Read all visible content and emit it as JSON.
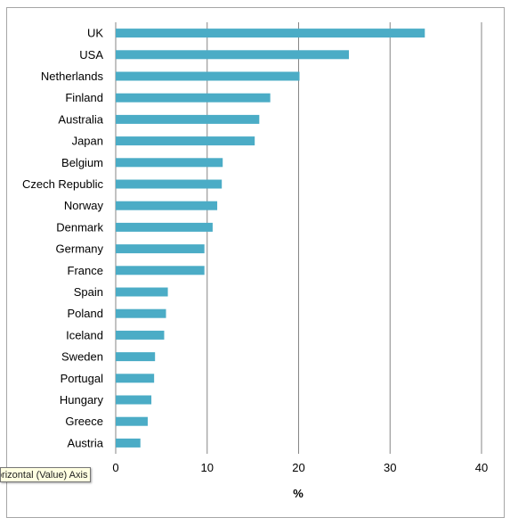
{
  "chart_data": {
    "type": "bar",
    "orientation": "horizontal",
    "categories": [
      "UK",
      "USA",
      "Netherlands",
      "Finland",
      "Australia",
      "Japan",
      "Belgium",
      "Czech Republic",
      "Norway",
      "Denmark",
      "Germany",
      "France",
      "Spain",
      "Poland",
      "Iceland",
      "Sweden",
      "Portugal",
      "Hungary",
      "Greece",
      "Austria"
    ],
    "values": [
      33.8,
      25.5,
      20.1,
      16.9,
      15.7,
      15.2,
      11.7,
      11.6,
      11.1,
      10.6,
      9.7,
      9.7,
      5.7,
      5.5,
      5.3,
      4.3,
      4.2,
      3.9,
      3.5,
      2.7
    ],
    "xlabel": "%",
    "ylabel": "",
    "xlim": [
      0,
      40
    ],
    "xticks": [
      "0",
      "10",
      "20",
      "30",
      "40"
    ],
    "grid": "vertical",
    "legend": "none",
    "bar_color": "#4bacc6"
  },
  "tooltip": {
    "text": "Horizontal (Value) Axis"
  }
}
